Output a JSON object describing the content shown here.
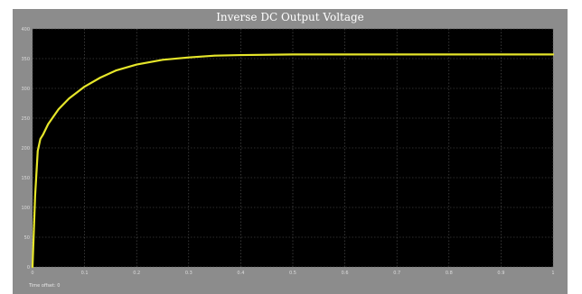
{
  "window": {
    "title": "Inverse DC Output Voltage",
    "status": "Time offset:  0"
  },
  "colors": {
    "background": "#8c8c8c",
    "plot_area": "#000000",
    "grid": "#5a5a5a",
    "trace": "#e6e62a"
  },
  "chart_data": {
    "type": "line",
    "title": "Inverse DC Output Voltage",
    "xlabel": "",
    "ylabel": "",
    "xlim": [
      0,
      1
    ],
    "ylim": [
      0,
      400
    ],
    "grid": true,
    "x_ticks": [
      "0",
      "0.1",
      "0.2",
      "0.3",
      "0.4",
      "0.5",
      "0.6",
      "0.7",
      "0.8",
      "0.9",
      "1"
    ],
    "y_ticks": [
      "0",
      "50",
      "100",
      "150",
      "200",
      "250",
      "300",
      "350",
      "400"
    ],
    "series": [
      {
        "x": [
          0,
          0.005,
          0.01,
          0.015,
          0.02,
          0.03,
          0.05,
          0.07,
          0.1,
          0.13,
          0.16,
          0.2,
          0.25,
          0.3,
          0.35,
          0.4,
          0.5,
          0.6,
          0.7,
          0.8,
          0.9,
          1.0
        ],
        "y": [
          0,
          120,
          195,
          215,
          222,
          240,
          265,
          283,
          303,
          318,
          330,
          340,
          348,
          352,
          355,
          356,
          357,
          357,
          357,
          357,
          357,
          357
        ]
      }
    ]
  }
}
